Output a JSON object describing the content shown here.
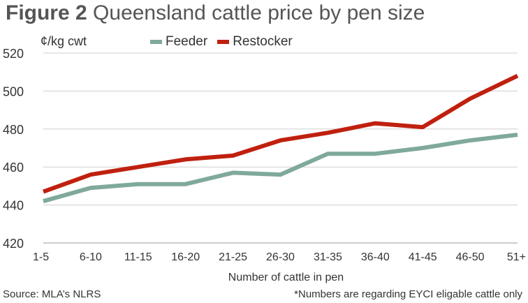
{
  "figure": {
    "label": "Figure 2",
    "title": "Queensland cattle price by pen size"
  },
  "source": "Source: MLA’s NLRS",
  "note": "*Numbers are regarding EYCI eligable cattle only",
  "chart_data": {
    "type": "line",
    "title": "Queensland cattle price by pen size",
    "unit_label": "¢/kg cwt",
    "xlabel": "Number of cattle in pen",
    "ylabel": "¢/kg cwt",
    "categories": [
      "1-5",
      "6-10",
      "11-15",
      "16-20",
      "21-25",
      "26-30",
      "31-35",
      "36-40",
      "41-45",
      "46-50",
      "51+"
    ],
    "ylim": [
      420,
      520
    ],
    "yticks": [
      420,
      440,
      460,
      480,
      500,
      520
    ],
    "grid": true,
    "legend_position": "top",
    "series": [
      {
        "name": "Feeder",
        "color": "#7fa99b",
        "values": [
          442,
          449,
          451,
          451,
          457,
          456,
          467,
          467,
          470,
          474,
          477
        ]
      },
      {
        "name": "Restocker",
        "color": "#c0200f",
        "values": [
          447,
          456,
          460,
          464,
          466,
          474,
          478,
          483,
          481,
          496,
          508
        ]
      }
    ]
  }
}
